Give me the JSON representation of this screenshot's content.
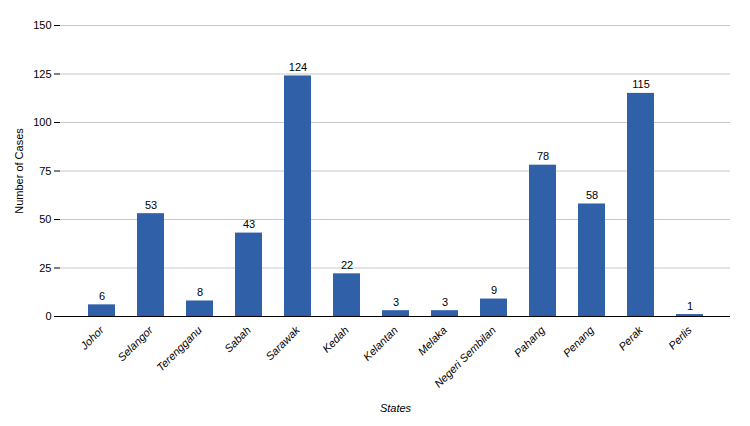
{
  "chart_data": {
    "type": "bar",
    "categories": [
      "Johor",
      "Selangor",
      "Terengganu",
      "Sabah",
      "Sarawak",
      "Kedah",
      "Kelantan",
      "Melaka",
      "Negeri Sembilan",
      "Pahang",
      "Penang",
      "Perak",
      "Perlis"
    ],
    "values": [
      6,
      53,
      8,
      43,
      124,
      22,
      3,
      3,
      9,
      78,
      58,
      115,
      1
    ],
    "color": "#3060A8",
    "xlabel": "States",
    "ylabel": "Number of Cases",
    "ylim": [
      0,
      150
    ],
    "yticks": [
      0,
      25,
      50,
      75,
      100,
      125,
      150
    ],
    "grid": true,
    "data_labels": true
  }
}
